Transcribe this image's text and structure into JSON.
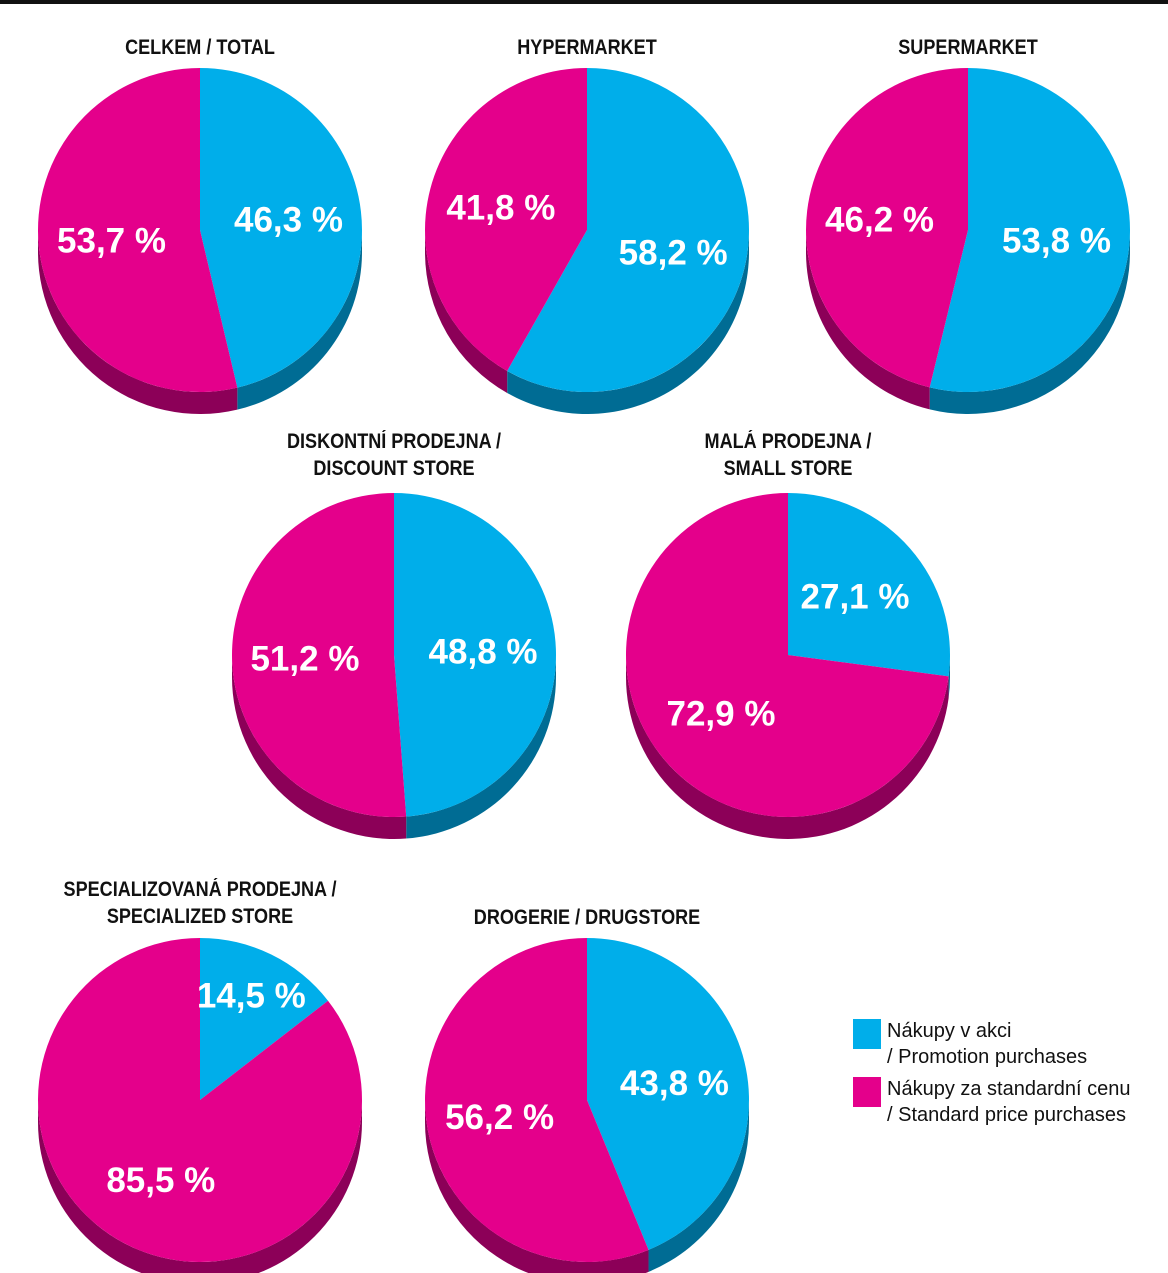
{
  "colors": {
    "promotion": "#00AEEA",
    "promotion_side": "#006C94",
    "standard": "#E4008B",
    "standard_side": "#8C0058"
  },
  "legend": {
    "promotion_line1": "Nákupy v akci",
    "promotion_line2": "/ Promotion purchases",
    "standard_line1": "Nákupy za standardní cenu",
    "standard_line2": "/ Standard price purchases"
  },
  "chart_data": [
    {
      "type": "pie",
      "title_line1": "CELKEM / TOTAL",
      "title_line2": "",
      "slices": [
        {
          "series": "promotion",
          "value": 46.3,
          "label": "46,3 %"
        },
        {
          "series": "standard",
          "value": 53.7,
          "label": "53,7 %"
        }
      ]
    },
    {
      "type": "pie",
      "title_line1": "HYPERMARKET",
      "title_line2": "",
      "slices": [
        {
          "series": "promotion",
          "value": 58.2,
          "label": "58,2 %"
        },
        {
          "series": "standard",
          "value": 41.8,
          "label": "41,8 %"
        }
      ]
    },
    {
      "type": "pie",
      "title_line1": "SUPERMARKET",
      "title_line2": "",
      "slices": [
        {
          "series": "promotion",
          "value": 53.8,
          "label": "53,8 %"
        },
        {
          "series": "standard",
          "value": 46.2,
          "label": "46,2 %"
        }
      ]
    },
    {
      "type": "pie",
      "title_line1": "DISKONTNÍ PRODEJNA /",
      "title_line2": "DISCOUNT STORE",
      "slices": [
        {
          "series": "promotion",
          "value": 48.8,
          "label": "48,8 %"
        },
        {
          "series": "standard",
          "value": 51.2,
          "label": "51,2 %"
        }
      ]
    },
    {
      "type": "pie",
      "title_line1": "MALÁ PRODEJNA /",
      "title_line2": "SMALL STORE",
      "slices": [
        {
          "series": "promotion",
          "value": 27.1,
          "label": "27,1 %"
        },
        {
          "series": "standard",
          "value": 72.9,
          "label": "72,9 %"
        }
      ]
    },
    {
      "type": "pie",
      "title_line1": "SPECIALIZOVANÁ PRODEJNA /",
      "title_line2": "SPECIALIZED STORE",
      "slices": [
        {
          "series": "promotion",
          "value": 14.5,
          "label": "14,5 %"
        },
        {
          "series": "standard",
          "value": 85.5,
          "label": "85,5 %"
        }
      ]
    },
    {
      "type": "pie",
      "title_line1": "DROGERIE / DRUGSTORE",
      "title_line2": "",
      "slices": [
        {
          "series": "promotion",
          "value": 43.8,
          "label": "43,8 %"
        },
        {
          "series": "standard",
          "value": 56.2,
          "label": "56,2 %"
        }
      ]
    }
  ]
}
